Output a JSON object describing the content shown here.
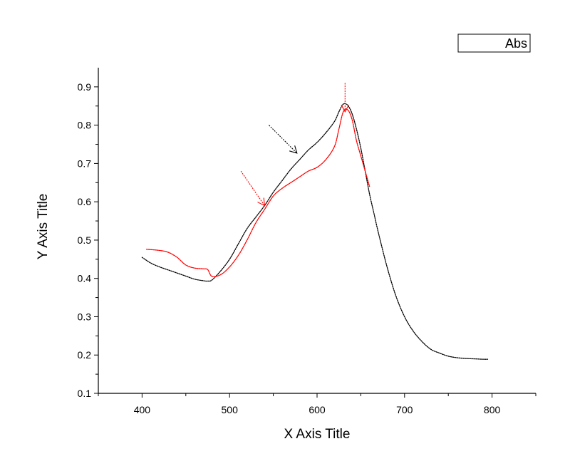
{
  "chart_data": {
    "type": "line",
    "title": "",
    "xlabel": "X Axis Title",
    "ylabel": "Y Axis Title",
    "xlim": [
      350,
      850
    ],
    "ylim": [
      0.1,
      0.95
    ],
    "xticks": [
      400,
      500,
      600,
      700,
      800
    ],
    "yticks": [
      0.1,
      0.2,
      0.3,
      0.4,
      0.5,
      0.6,
      0.7,
      0.8,
      0.9
    ],
    "grid": false,
    "legend": {
      "position": "top-right",
      "entries": [
        "Abs"
      ]
    },
    "series": [
      {
        "name": "Abs",
        "color": "#000000",
        "style": "dotted",
        "x": [
          400,
          410,
          420,
          430,
          440,
          450,
          460,
          470,
          475,
          480,
          490,
          500,
          510,
          520,
          530,
          540,
          550,
          560,
          570,
          580,
          590,
          600,
          610,
          620,
          625,
          630,
          635,
          640,
          645,
          650,
          655,
          660,
          665,
          670,
          680,
          690,
          700,
          710,
          720,
          730,
          740,
          750,
          760,
          770,
          780,
          790,
          795
        ],
        "y": [
          0.455,
          0.44,
          0.43,
          0.422,
          0.414,
          0.406,
          0.398,
          0.394,
          0.393,
          0.396,
          0.42,
          0.45,
          0.49,
          0.53,
          0.56,
          0.59,
          0.625,
          0.655,
          0.685,
          0.71,
          0.735,
          0.755,
          0.78,
          0.81,
          0.835,
          0.855,
          0.852,
          0.83,
          0.79,
          0.74,
          0.68,
          0.62,
          0.57,
          0.52,
          0.43,
          0.355,
          0.3,
          0.262,
          0.235,
          0.215,
          0.205,
          0.197,
          0.193,
          0.191,
          0.19,
          0.189,
          0.189
        ]
      },
      {
        "color": "#ff0000",
        "style": "dotted",
        "x": [
          405,
          420,
          430,
          440,
          450,
          460,
          470,
          475,
          480,
          490,
          500,
          510,
          520,
          530,
          540,
          550,
          560,
          570,
          580,
          590,
          600,
          610,
          620,
          625,
          630,
          635,
          640,
          645,
          650,
          655,
          660
        ],
        "y": [
          0.476,
          0.473,
          0.468,
          0.455,
          0.435,
          0.427,
          0.425,
          0.423,
          0.405,
          0.41,
          0.43,
          0.46,
          0.5,
          0.545,
          0.58,
          0.615,
          0.635,
          0.65,
          0.665,
          0.68,
          0.69,
          0.71,
          0.745,
          0.79,
          0.835,
          0.84,
          0.815,
          0.76,
          0.72,
          0.68,
          0.64
        ]
      }
    ],
    "annotations": [
      {
        "type": "arrow",
        "color": "#000000",
        "from": [
          545,
          0.8
        ],
        "to": [
          577,
          0.727
        ]
      },
      {
        "type": "arrow",
        "color": "#ff0000",
        "from": [
          513,
          0.68
        ],
        "to": [
          540,
          0.59
        ]
      },
      {
        "type": "arrow",
        "color": "#ff0000",
        "from": [
          632,
          0.91
        ],
        "to": [
          632,
          0.835
        ]
      }
    ]
  }
}
